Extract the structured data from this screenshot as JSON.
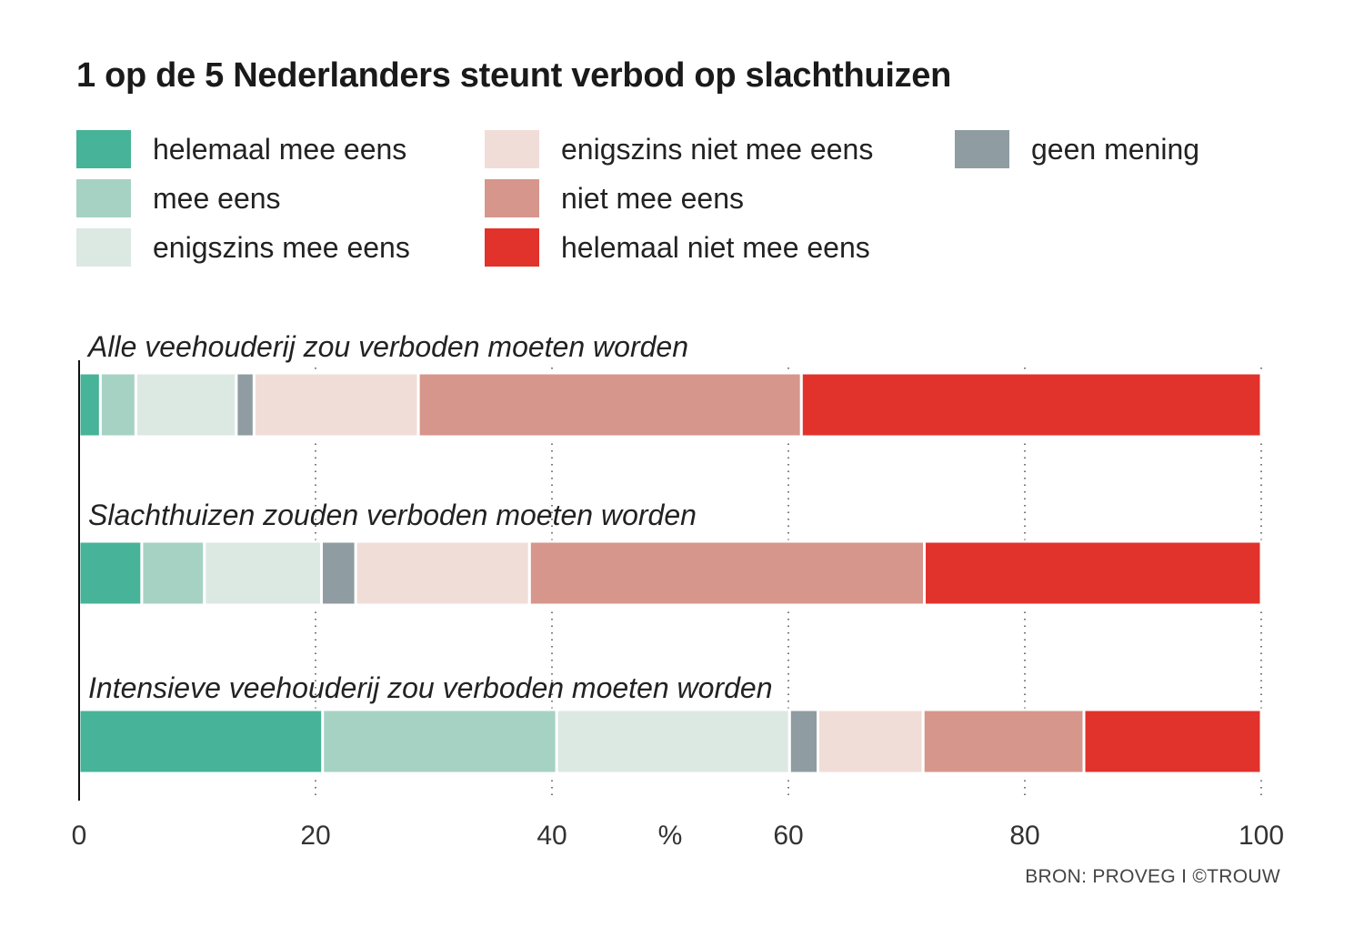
{
  "chart_data": {
    "type": "bar",
    "orientation": "horizontal-stacked",
    "title": "1 op de 5 Nederlanders steunt verbod op slachthuizen",
    "categories": [
      "Alle veehouderij zou verboden moeten worden",
      "Slachthuizen zouden verboden moeten worden",
      "Intensieve veehouderij zou verboden moeten worden"
    ],
    "series": [
      {
        "name": "helemaal mee eens",
        "color": "#47b398",
        "values": [
          1.8,
          5.3,
          20.6
        ]
      },
      {
        "name": "mee eens",
        "color": "#a6d2c3",
        "values": [
          3.0,
          5.3,
          19.8
        ]
      },
      {
        "name": "enigszins mee eens",
        "color": "#dce9e3",
        "values": [
          8.5,
          9.9,
          19.7
        ]
      },
      {
        "name": "geen mening",
        "color": "#8f9ca2",
        "values": [
          1.5,
          2.9,
          2.4
        ]
      },
      {
        "name": "enigszins niet mee eens",
        "color": "#f1ddd7",
        "values": [
          13.9,
          14.7,
          8.9
        ]
      },
      {
        "name": "niet mee eens",
        "color": "#d6968b",
        "values": [
          32.4,
          33.4,
          13.6
        ]
      },
      {
        "name": "helemaal niet mee eens",
        "color": "#e1322c",
        "values": [
          38.9,
          28.5,
          15.0
        ]
      }
    ],
    "xlim": [
      0,
      100
    ],
    "xticks": [
      0,
      20,
      40,
      60,
      80,
      100
    ],
    "xtick_labels": [
      "0",
      "20",
      "40",
      "60",
      "80",
      "100"
    ],
    "xlabel": "%",
    "grid": "dotted vertical",
    "legend_position": "top",
    "legend_columns": [
      [
        "helemaal mee eens",
        "mee eens",
        "enigszins mee eens"
      ],
      [
        "enigszins niet mee eens",
        "niet mee eens",
        "helemaal niet mee eens"
      ],
      [
        "geen mening"
      ]
    ]
  },
  "source": "BRON: PROVEG I ©TROUW"
}
